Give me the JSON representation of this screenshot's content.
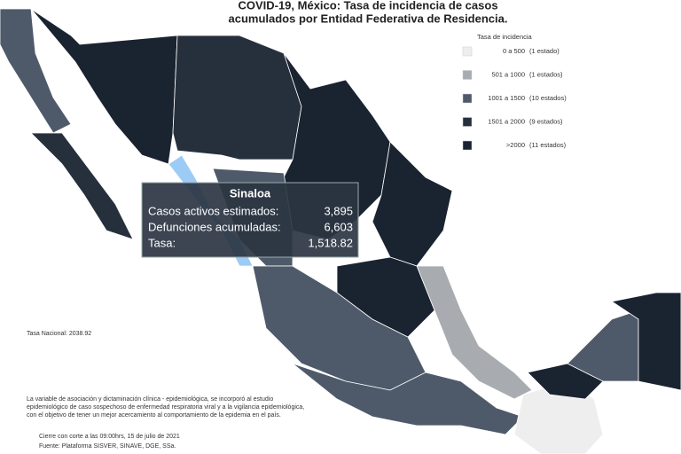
{
  "header": {
    "title_lines": [
      "COVID-19, México: Tasa de incidencia de casos",
      "acumulados por Entidad Federativa de Residencia."
    ]
  },
  "legend": {
    "title": "Tasa de incidencia",
    "items": [
      {
        "range": "0 a 500",
        "count": "(1 estado)",
        "color": "#eeeeee"
      },
      {
        "range": "501 a 1000",
        "count": "(1 estados)",
        "color": "#a8acb0"
      },
      {
        "range": "1001 a 1500",
        "count": "(10 estados)",
        "color": "#4e5a6a"
      },
      {
        "range": "1501 a 2000",
        "count": "(9 estados)",
        "color": "#26303d"
      },
      {
        "range": ">2000",
        "count": "(11 estados)",
        "color": "#1a2330"
      }
    ]
  },
  "tooltip": {
    "title": "Sinaloa",
    "rows": [
      {
        "label": "Casos activos estimados:",
        "value": "3,895"
      },
      {
        "label": "Defunciones acumuladas:",
        "value": "6,603"
      },
      {
        "label": "Tasa:",
        "value": "1,518.82"
      }
    ]
  },
  "national_rate": "Tasa Nacional: 2038.92",
  "note_lines": [
    "La variable de asociación y dictaminación clínica - epidemiológica, se incorporó al estudio",
    "epidemiológico de caso sospechoso de enfermedad respiratoria viral y a la vigilancia epidemiológica,",
    "con el objetivo de tener un mejor acercamiento al comportamiento de la epidemia en el país."
  ],
  "footer_lines": [
    "Cierre con corte a las 09:00hrs, 15 de julio de 2021",
    "Fuente: Plataforma SISVER, SINAVE, DGE, SSa."
  ]
}
